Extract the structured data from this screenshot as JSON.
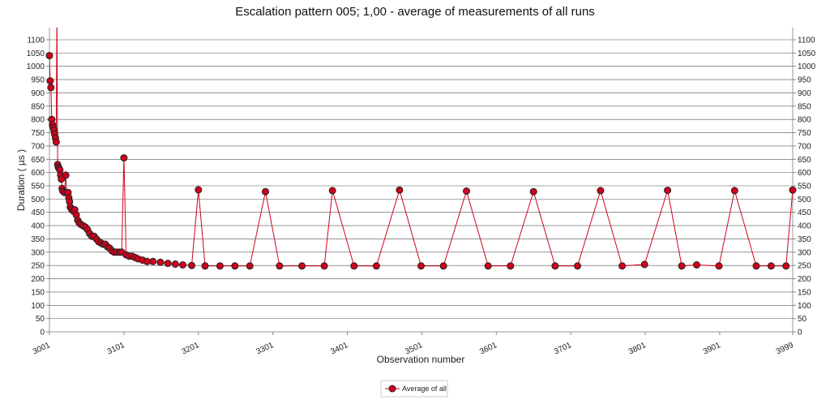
{
  "chart_data": {
    "type": "line",
    "title": "Escalation pattern 005; 1,00 - average of measurements of all runs",
    "xlabel": "Observation number",
    "ylabel": "Duration ( µs )",
    "xlim": [
      3001,
      3999
    ],
    "ylim": [
      0,
      1100
    ],
    "yticks": [
      0,
      50,
      100,
      150,
      200,
      250,
      300,
      350,
      400,
      450,
      500,
      550,
      600,
      650,
      700,
      750,
      800,
      850,
      900,
      950,
      1000,
      1050,
      1100
    ],
    "xticks": [
      3001,
      3101,
      3201,
      3301,
      3401,
      3501,
      3601,
      3701,
      3801,
      3901,
      3999
    ],
    "grid": true,
    "legend_position": "bottom-center",
    "series_color": "#d0021b",
    "series": [
      {
        "name": "Average of all",
        "points": [
          [
            3001,
            1040
          ],
          [
            3002,
            945
          ],
          [
            3003,
            920
          ],
          [
            3004,
            800
          ],
          [
            3005,
            780
          ],
          [
            3006,
            770
          ],
          [
            3007,
            760
          ],
          [
            3008,
            745
          ],
          [
            3009,
            730
          ],
          [
            3010,
            715
          ],
          [
            3011,
            1200
          ],
          [
            3012,
            630
          ],
          [
            3013,
            620
          ],
          [
            3014,
            615
          ],
          [
            3015,
            610
          ],
          [
            3016,
            590
          ],
          [
            3017,
            575
          ],
          [
            3018,
            540
          ],
          [
            3019,
            530
          ],
          [
            3021,
            525
          ],
          [
            3023,
            590
          ],
          [
            3024,
            525
          ],
          [
            3026,
            525
          ],
          [
            3027,
            505
          ],
          [
            3028,
            490
          ],
          [
            3029,
            470
          ],
          [
            3031,
            460
          ],
          [
            3033,
            455
          ],
          [
            3035,
            460
          ],
          [
            3037,
            440
          ],
          [
            3039,
            420
          ],
          [
            3041,
            410
          ],
          [
            3043,
            405
          ],
          [
            3046,
            400
          ],
          [
            3049,
            395
          ],
          [
            3052,
            385
          ],
          [
            3055,
            370
          ],
          [
            3058,
            360
          ],
          [
            3061,
            360
          ],
          [
            3064,
            350
          ],
          [
            3067,
            340
          ],
          [
            3070,
            335
          ],
          [
            3073,
            330
          ],
          [
            3076,
            330
          ],
          [
            3079,
            320
          ],
          [
            3082,
            315
          ],
          [
            3085,
            305
          ],
          [
            3088,
            300
          ],
          [
            3091,
            300
          ],
          [
            3095,
            300
          ],
          [
            3098,
            300
          ],
          [
            3101,
            655
          ],
          [
            3104,
            290
          ],
          [
            3108,
            285
          ],
          [
            3112,
            285
          ],
          [
            3116,
            280
          ],
          [
            3120,
            275
          ],
          [
            3126,
            270
          ],
          [
            3132,
            265
          ],
          [
            3140,
            265
          ],
          [
            3150,
            262
          ],
          [
            3160,
            258
          ],
          [
            3170,
            255
          ],
          [
            3180,
            252
          ],
          [
            3192,
            250
          ],
          [
            3201,
            535
          ],
          [
            3210,
            248
          ],
          [
            3230,
            248
          ],
          [
            3250,
            248
          ],
          [
            3270,
            248
          ],
          [
            3291,
            528
          ],
          [
            3310,
            248
          ],
          [
            3340,
            248
          ],
          [
            3370,
            248
          ],
          [
            3381,
            532
          ],
          [
            3410,
            248
          ],
          [
            3440,
            248
          ],
          [
            3471,
            534
          ],
          [
            3500,
            248
          ],
          [
            3530,
            248
          ],
          [
            3561,
            530
          ],
          [
            3590,
            248
          ],
          [
            3620,
            248
          ],
          [
            3651,
            528
          ],
          [
            3680,
            248
          ],
          [
            3710,
            248
          ],
          [
            3741,
            532
          ],
          [
            3770,
            248
          ],
          [
            3800,
            254
          ],
          [
            3831,
            533
          ],
          [
            3850,
            248
          ],
          [
            3870,
            252
          ],
          [
            3900,
            248
          ],
          [
            3921,
            532
          ],
          [
            3950,
            248
          ],
          [
            3970,
            248
          ],
          [
            3990,
            248
          ],
          [
            3999,
            534
          ]
        ]
      }
    ]
  }
}
